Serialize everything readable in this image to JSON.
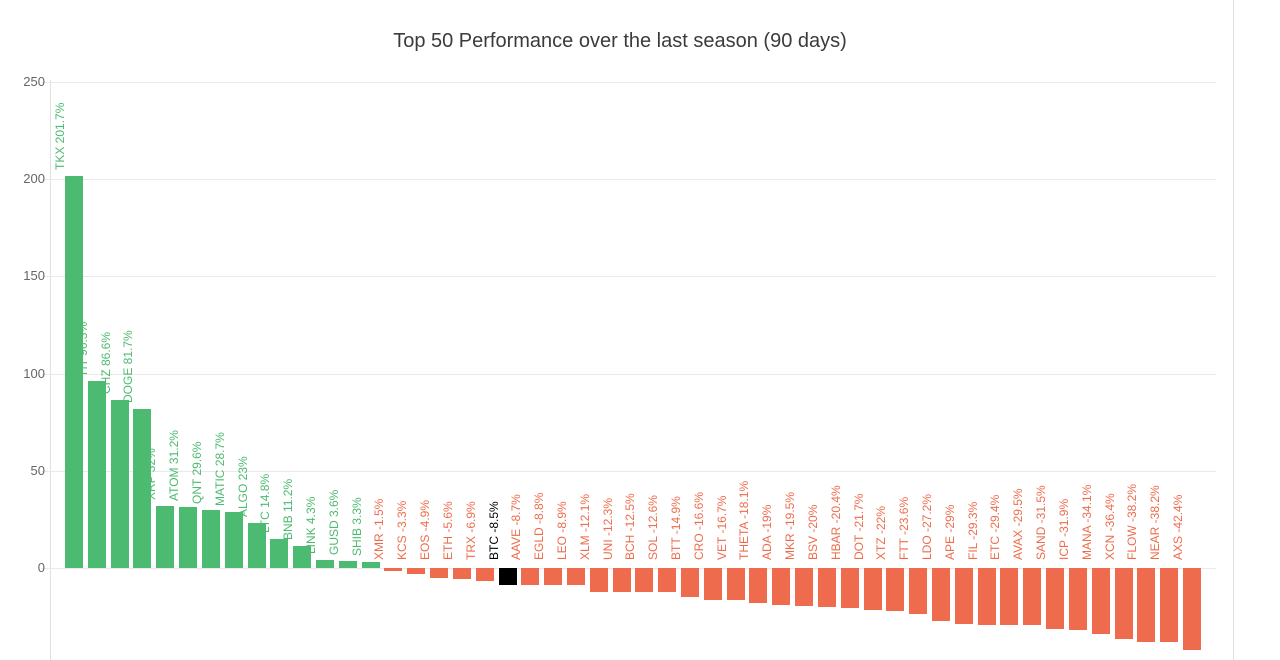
{
  "chart_data": {
    "type": "bar",
    "title": "Top 50 Performance over the last season (90 days)",
    "xlabel": "",
    "ylabel": "",
    "ylim": [
      -50,
      250
    ],
    "grid": true,
    "legend": "none",
    "yticks": [
      250,
      200,
      150,
      100,
      50,
      0,
      -50
    ],
    "colors": {
      "positive": "#4CBA70",
      "negative": "#EE6C4D",
      "highlight": "#000000"
    },
    "highlight_symbol": "BTC",
    "series": [
      {
        "symbol": "TKX",
        "value": 201.7,
        "label": "TKX 201.7%"
      },
      {
        "symbol": "HT",
        "value": 96.3,
        "label": "HT 96.3%"
      },
      {
        "symbol": "CHZ",
        "value": 86.6,
        "label": "CHZ 86.6%"
      },
      {
        "symbol": "DOGE",
        "value": 81.7,
        "label": "DOGE 81.7%"
      },
      {
        "symbol": "XRP",
        "value": 32,
        "label": "XRP 32%"
      },
      {
        "symbol": "ATOM",
        "value": 31.2,
        "label": "ATOM 31.2%"
      },
      {
        "symbol": "QNT",
        "value": 29.6,
        "label": "QNT 29.6%"
      },
      {
        "symbol": "MATIC",
        "value": 28.7,
        "label": "MATIC 28.7%"
      },
      {
        "symbol": "ALGO",
        "value": 23,
        "label": "ALGO 23%"
      },
      {
        "symbol": "LTC",
        "value": 14.8,
        "label": "LTC 14.8%"
      },
      {
        "symbol": "BNB",
        "value": 11.2,
        "label": "BNB 11.2%"
      },
      {
        "symbol": "LINK",
        "value": 4.3,
        "label": "LINK 4.3%"
      },
      {
        "symbol": "GUSD",
        "value": 3.6,
        "label": "GUSD 3.6%"
      },
      {
        "symbol": "SHIB",
        "value": 3.3,
        "label": "SHIB 3.3%"
      },
      {
        "symbol": "XMR",
        "value": -1.5,
        "label": "XMR -1.5%"
      },
      {
        "symbol": "KCS",
        "value": -3.3,
        "label": "KCS -3.3%"
      },
      {
        "symbol": "EOS",
        "value": -4.9,
        "label": "EOS -4.9%"
      },
      {
        "symbol": "ETH",
        "value": -5.6,
        "label": "ETH -5.6%"
      },
      {
        "symbol": "TRX",
        "value": -6.9,
        "label": "TRX -6.9%"
      },
      {
        "symbol": "BTC",
        "value": -8.5,
        "label": "BTC -8.5%"
      },
      {
        "symbol": "AAVE",
        "value": -8.7,
        "label": "AAVE -8.7%"
      },
      {
        "symbol": "EGLD",
        "value": -8.8,
        "label": "EGLD -8.8%"
      },
      {
        "symbol": "LEO",
        "value": -8.9,
        "label": "LEO -8.9%"
      },
      {
        "symbol": "XLM",
        "value": -12.1,
        "label": "XLM -12.1%"
      },
      {
        "symbol": "UNI",
        "value": -12.3,
        "label": "UNI -12.3%"
      },
      {
        "symbol": "BCH",
        "value": -12.5,
        "label": "BCH -12.5%"
      },
      {
        "symbol": "SOL",
        "value": -12.6,
        "label": "SOL -12.6%"
      },
      {
        "symbol": "BTT",
        "value": -14.9,
        "label": "BTT -14.9%"
      },
      {
        "symbol": "CRO",
        "value": -16.6,
        "label": "CRO -16.6%"
      },
      {
        "symbol": "VET",
        "value": -16.7,
        "label": "VET -16.7%"
      },
      {
        "symbol": "THETA",
        "value": -18.1,
        "label": "THETA -18.1%"
      },
      {
        "symbol": "ADA",
        "value": -19,
        "label": "ADA -19%"
      },
      {
        "symbol": "MKR",
        "value": -19.5,
        "label": "MKR -19.5%"
      },
      {
        "symbol": "BSV",
        "value": -20,
        "label": "BSV -20%"
      },
      {
        "symbol": "HBAR",
        "value": -20.4,
        "label": "HBAR -20.4%"
      },
      {
        "symbol": "DOT",
        "value": -21.7,
        "label": "DOT -21.7%"
      },
      {
        "symbol": "XTZ",
        "value": -22,
        "label": "XTZ -22%"
      },
      {
        "symbol": "FTT",
        "value": -23.6,
        "label": "FTT -23.6%"
      },
      {
        "symbol": "LDO",
        "value": -27.2,
        "label": "LDO -27.2%"
      },
      {
        "symbol": "APE",
        "value": -29,
        "label": "APE -29%"
      },
      {
        "symbol": "FIL",
        "value": -29.3,
        "label": "FIL -29.3%"
      },
      {
        "symbol": "ETC",
        "value": -29.4,
        "label": "ETC -29.4%"
      },
      {
        "symbol": "AVAX",
        "value": -29.5,
        "label": "AVAX -29.5%"
      },
      {
        "symbol": "SAND",
        "value": -31.5,
        "label": "SAND -31.5%"
      },
      {
        "symbol": "ICP",
        "value": -31.9,
        "label": "ICP -31.9%"
      },
      {
        "symbol": "MANA",
        "value": -34.1,
        "label": "MANA -34.1%"
      },
      {
        "symbol": "XCN",
        "value": -36.4,
        "label": "XCN -36.4%"
      },
      {
        "symbol": "FLOW",
        "value": -38.2,
        "label": "FLOW -38.2%"
      },
      {
        "symbol": "NEAR",
        "value": -38.2,
        "label": "NEAR -38.2%"
      },
      {
        "symbol": "AXS",
        "value": -42.4,
        "label": "AXS -42.4%"
      }
    ]
  }
}
